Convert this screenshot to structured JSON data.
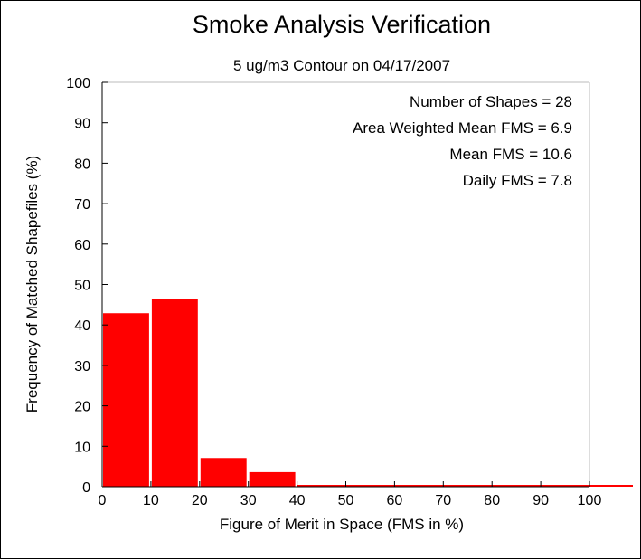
{
  "chart_data": {
    "type": "bar",
    "title": "Smoke Analysis Verification",
    "subtitle": "5 ug/m3 Contour on 04/17/2007",
    "xlabel": "Figure of Merit in Space (FMS in %)",
    "ylabel": "Frequency of Matched Shapefiles (%)",
    "xlim": [
      0,
      100
    ],
    "ylim": [
      0,
      100
    ],
    "xticks": [
      "0",
      "10",
      "20",
      "30",
      "40",
      "50",
      "60",
      "70",
      "80",
      "90",
      "100"
    ],
    "yticks": [
      "0",
      "10",
      "20",
      "30",
      "40",
      "50",
      "60",
      "70",
      "80",
      "90",
      "100"
    ],
    "bins": [
      {
        "start": 0,
        "end": 10,
        "value": 42.9
      },
      {
        "start": 10,
        "end": 20,
        "value": 46.4
      },
      {
        "start": 20,
        "end": 30,
        "value": 7.1
      },
      {
        "start": 30,
        "end": 40,
        "value": 3.6
      },
      {
        "start": 40,
        "end": 50,
        "value": 0
      },
      {
        "start": 50,
        "end": 60,
        "value": 0
      },
      {
        "start": 60,
        "end": 70,
        "value": 0
      },
      {
        "start": 70,
        "end": 80,
        "value": 0
      },
      {
        "start": 80,
        "end": 90,
        "value": 0
      },
      {
        "start": 90,
        "end": 100,
        "value": 0
      }
    ],
    "bar_color": "#ff0000",
    "grid": false,
    "annotations": [
      "Number of Shapes = 28",
      "Area Weighted Mean FMS = 6.9",
      "Mean FMS = 10.6",
      "Daily FMS = 7.8"
    ]
  }
}
